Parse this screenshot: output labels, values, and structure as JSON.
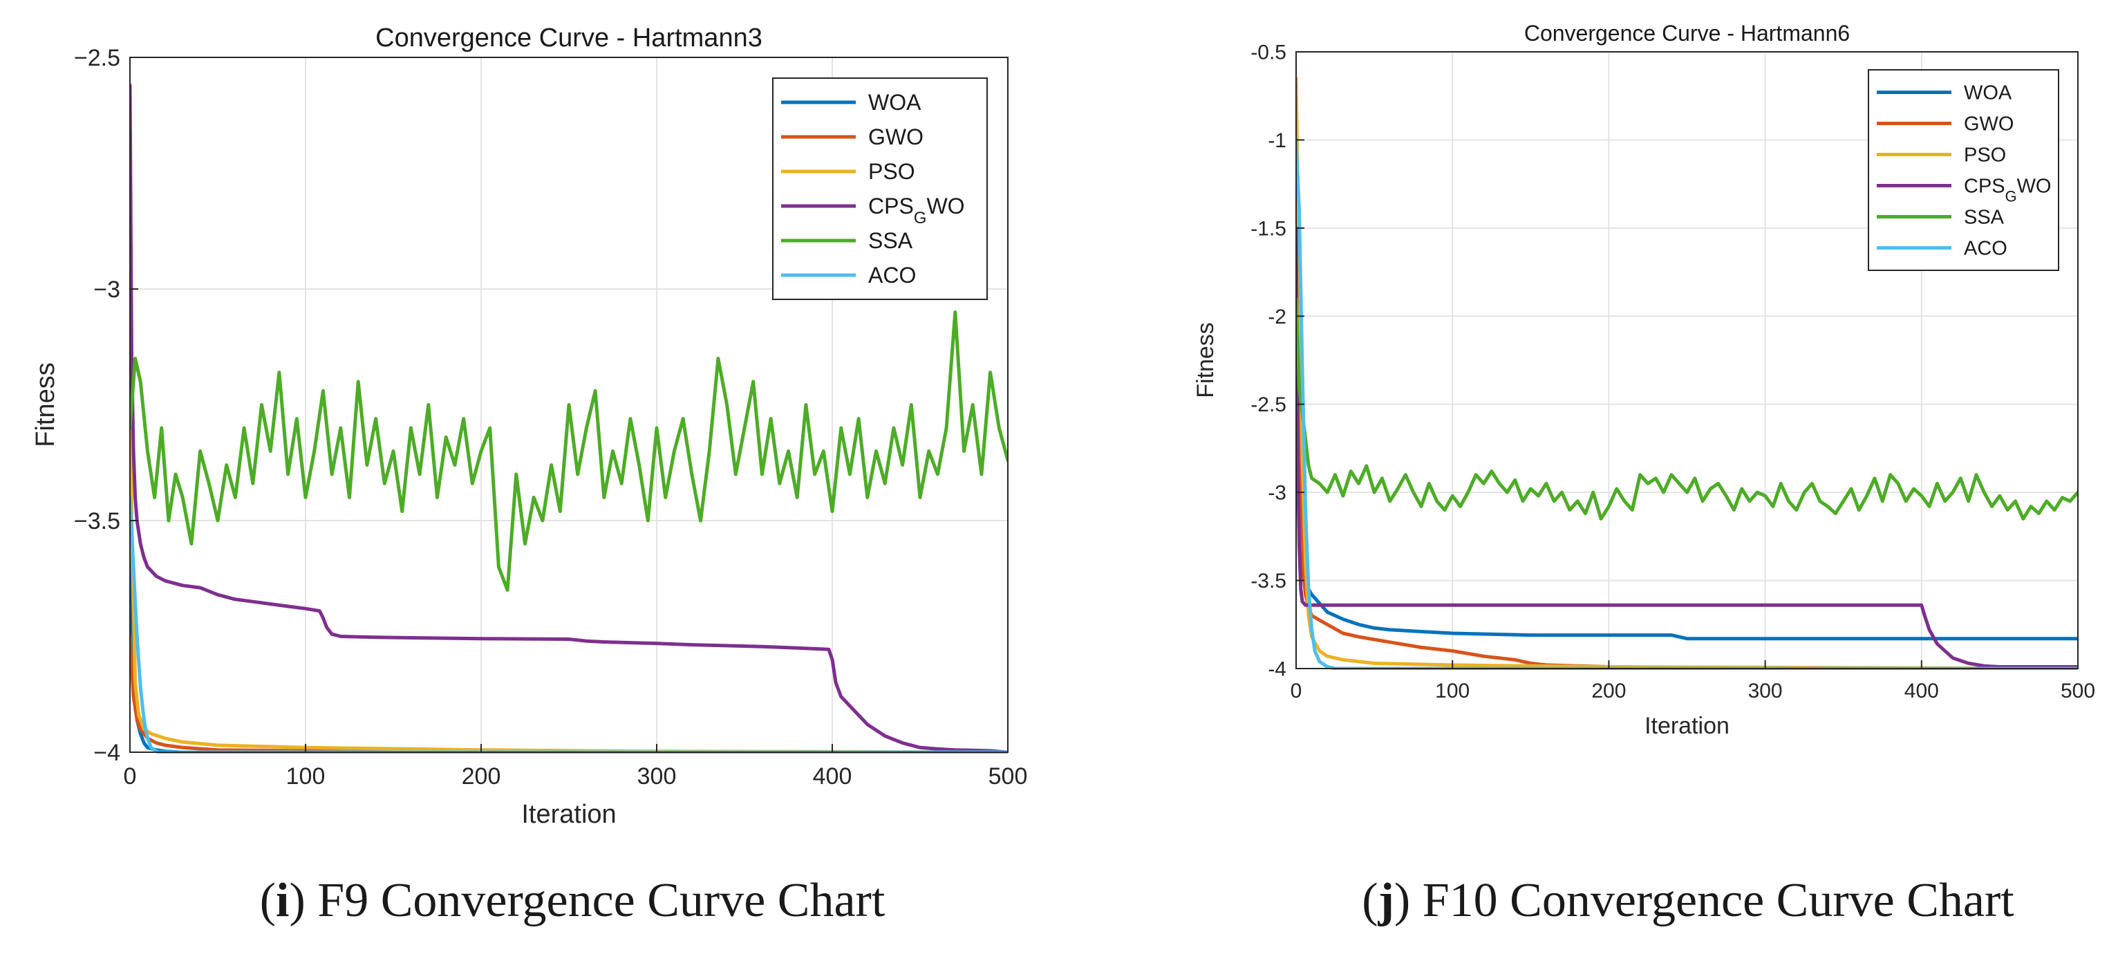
{
  "figure": {
    "captions": [
      {
        "label": "i",
        "text": " F9 Convergence Curve Chart"
      },
      {
        "label": "j",
        "text": " F10 Convergence Curve Chart"
      }
    ]
  },
  "chart_data": [
    {
      "type": "line",
      "title": "Convergence Curve - Hartmann3",
      "xlabel": "Iteration",
      "ylabel": "Fitness",
      "xlim": [
        0,
        500
      ],
      "ylim": [
        -4,
        -2.5
      ],
      "xticks": [
        0,
        100,
        200,
        300,
        400,
        500
      ],
      "xtick_labels": [
        "0",
        "100",
        "200",
        "300",
        "400",
        "500"
      ],
      "yticks": [
        -4,
        -3.5,
        -3,
        -2.5
      ],
      "ytick_labels": [
        "−4",
        "−3.5",
        "−3",
        "−2.5"
      ],
      "grid": true,
      "legend_position": "top-right",
      "series": [
        {
          "name": "WOA",
          "color": "#0072BD",
          "x": [
            0,
            2,
            4,
            6,
            8,
            10,
            15,
            20,
            30,
            50,
            100,
            500
          ],
          "y": [
            -3.5,
            -3.85,
            -3.93,
            -3.96,
            -3.98,
            -3.99,
            -3.995,
            -3.998,
            -4.0,
            -4.0,
            -4.0,
            -4.0
          ]
        },
        {
          "name": "GWO",
          "color": "#D95319",
          "x": [
            0,
            2,
            4,
            6,
            8,
            10,
            15,
            20,
            30,
            50,
            100,
            200,
            500
          ],
          "y": [
            -3.75,
            -3.88,
            -3.93,
            -3.95,
            -3.96,
            -3.97,
            -3.98,
            -3.985,
            -3.99,
            -3.995,
            -3.997,
            -3.999,
            -4.0
          ]
        },
        {
          "name": "PSO",
          "color": "#EDB120",
          "x": [
            0,
            1,
            3,
            5,
            8,
            12,
            20,
            30,
            50,
            100,
            200,
            300,
            400,
            500
          ],
          "y": [
            -2.9,
            -3.5,
            -3.85,
            -3.92,
            -3.95,
            -3.96,
            -3.97,
            -3.978,
            -3.985,
            -3.99,
            -3.995,
            -3.998,
            -3.999,
            -4.0
          ]
        },
        {
          "name": "CPSGWO",
          "color": "#7E2F8E",
          "x": [
            0,
            1,
            2,
            3,
            4,
            6,
            8,
            10,
            15,
            20,
            30,
            40,
            50,
            60,
            70,
            80,
            90,
            100,
            108,
            110,
            112,
            115,
            120,
            140,
            160,
            200,
            250,
            260,
            270,
            280,
            300,
            320,
            340,
            360,
            380,
            398,
            400,
            402,
            405,
            410,
            415,
            420,
            430,
            440,
            450,
            460,
            470,
            480,
            490,
            500
          ],
          "y": [
            -2.56,
            -3.15,
            -3.35,
            -3.45,
            -3.5,
            -3.55,
            -3.58,
            -3.6,
            -3.62,
            -3.63,
            -3.64,
            -3.645,
            -3.66,
            -3.67,
            -3.675,
            -3.68,
            -3.685,
            -3.69,
            -3.695,
            -3.71,
            -3.73,
            -3.745,
            -3.75,
            -3.752,
            -3.753,
            -3.755,
            -3.756,
            -3.76,
            -3.762,
            -3.763,
            -3.765,
            -3.768,
            -3.77,
            -3.772,
            -3.775,
            -3.778,
            -3.8,
            -3.85,
            -3.88,
            -3.9,
            -3.92,
            -3.94,
            -3.965,
            -3.98,
            -3.99,
            -3.993,
            -3.995,
            -3.996,
            -3.997,
            -4.0
          ]
        },
        {
          "name": "SSA",
          "color": "#4DAC26",
          "x": [
            0,
            3,
            6,
            10,
            14,
            18,
            22,
            26,
            30,
            35,
            40,
            45,
            50,
            55,
            60,
            65,
            70,
            75,
            80,
            85,
            90,
            95,
            100,
            105,
            110,
            115,
            120,
            125,
            130,
            135,
            140,
            145,
            150,
            155,
            160,
            165,
            170,
            175,
            180,
            185,
            190,
            195,
            200,
            205,
            210,
            215,
            220,
            225,
            230,
            235,
            240,
            245,
            250,
            255,
            260,
            265,
            270,
            275,
            280,
            285,
            290,
            295,
            300,
            305,
            310,
            315,
            320,
            325,
            330,
            335,
            340,
            345,
            350,
            355,
            360,
            365,
            370,
            375,
            380,
            385,
            390,
            395,
            400,
            405,
            410,
            415,
            420,
            425,
            430,
            435,
            440,
            445,
            450,
            455,
            460,
            465,
            470,
            475,
            480,
            485,
            490,
            495,
            500
          ],
          "y": [
            -3.3,
            -3.15,
            -3.2,
            -3.35,
            -3.45,
            -3.3,
            -3.5,
            -3.4,
            -3.45,
            -3.55,
            -3.35,
            -3.42,
            -3.5,
            -3.38,
            -3.45,
            -3.3,
            -3.42,
            -3.25,
            -3.35,
            -3.18,
            -3.4,
            -3.28,
            -3.45,
            -3.35,
            -3.22,
            -3.4,
            -3.3,
            -3.45,
            -3.2,
            -3.38,
            -3.28,
            -3.42,
            -3.35,
            -3.48,
            -3.3,
            -3.4,
            -3.25,
            -3.45,
            -3.32,
            -3.38,
            -3.28,
            -3.42,
            -3.35,
            -3.3,
            -3.6,
            -3.65,
            -3.4,
            -3.55,
            -3.45,
            -3.5,
            -3.38,
            -3.48,
            -3.25,
            -3.4,
            -3.3,
            -3.22,
            -3.45,
            -3.35,
            -3.42,
            -3.28,
            -3.38,
            -3.5,
            -3.3,
            -3.45,
            -3.35,
            -3.28,
            -3.4,
            -3.5,
            -3.35,
            -3.15,
            -3.25,
            -3.4,
            -3.3,
            -3.2,
            -3.4,
            -3.28,
            -3.42,
            -3.35,
            -3.45,
            -3.25,
            -3.4,
            -3.35,
            -3.48,
            -3.3,
            -3.4,
            -3.28,
            -3.45,
            -3.35,
            -3.42,
            -3.3,
            -3.38,
            -3.25,
            -3.45,
            -3.35,
            -3.4,
            -3.3,
            -3.05,
            -3.35,
            -3.25,
            -3.4,
            -3.18,
            -3.3,
            -3.37
          ]
        },
        {
          "name": "ACO",
          "color": "#4DBEEE",
          "x": [
            0,
            2,
            4,
            6,
            8,
            10,
            12,
            14,
            16,
            20,
            500
          ],
          "y": [
            -3.45,
            -3.6,
            -3.75,
            -3.86,
            -3.93,
            -3.97,
            -3.99,
            -3.995,
            -4.0,
            -4.0,
            -4.0
          ]
        }
      ]
    },
    {
      "type": "line",
      "title": "Convergence Curve - Hartmann6",
      "xlabel": "Iteration",
      "ylabel": "Fitness",
      "xlim": [
        0,
        500
      ],
      "ylim": [
        -4,
        -0.5
      ],
      "xticks": [
        0,
        100,
        200,
        300,
        400,
        500
      ],
      "xtick_labels": [
        "0",
        "100",
        "200",
        "300",
        "400",
        "500"
      ],
      "yticks": [
        -4,
        -3.5,
        -3,
        -2.5,
        -2,
        -1.5,
        -1,
        -0.5
      ],
      "ytick_labels": [
        "-4",
        "-3.5",
        "-3",
        "-2.5",
        "-2",
        "-1.5",
        "-1",
        "-0.5"
      ],
      "grid": true,
      "legend_position": "top-right",
      "series": [
        {
          "name": "WOA",
          "color": "#0072BD",
          "x": [
            0,
            2,
            4,
            6,
            8,
            10,
            15,
            20,
            30,
            40,
            50,
            60,
            80,
            100,
            150,
            200,
            240,
            250,
            300,
            400,
            500
          ],
          "y": [
            -1.3,
            -2.6,
            -3.2,
            -3.45,
            -3.55,
            -3.58,
            -3.63,
            -3.68,
            -3.72,
            -3.75,
            -3.77,
            -3.78,
            -3.79,
            -3.8,
            -3.81,
            -3.81,
            -3.81,
            -3.83,
            -3.83,
            -3.83,
            -3.83
          ]
        },
        {
          "name": "GWO",
          "color": "#D95319",
          "x": [
            0,
            2,
            4,
            6,
            8,
            10,
            20,
            30,
            40,
            60,
            80,
            100,
            120,
            140,
            150,
            160,
            200,
            300,
            400,
            500
          ],
          "y": [
            -1.4,
            -2.9,
            -3.4,
            -3.58,
            -3.65,
            -3.7,
            -3.75,
            -3.8,
            -3.82,
            -3.85,
            -3.88,
            -3.9,
            -3.93,
            -3.95,
            -3.97,
            -3.98,
            -3.99,
            -4.0,
            -4.0,
            -4.0
          ]
        },
        {
          "name": "PSO",
          "color": "#EDB120",
          "x": [
            0,
            2,
            4,
            6,
            8,
            10,
            15,
            20,
            30,
            50,
            100,
            200,
            500
          ],
          "y": [
            -0.65,
            -1.8,
            -2.8,
            -3.4,
            -3.7,
            -3.82,
            -3.9,
            -3.93,
            -3.95,
            -3.97,
            -3.98,
            -3.99,
            -4.0
          ]
        },
        {
          "name": "CPSGWO",
          "color": "#7E2F8E",
          "x": [
            0,
            1,
            2,
            3,
            4,
            6,
            10,
            50,
            100,
            200,
            300,
            400,
            402,
            405,
            410,
            420,
            430,
            440,
            450,
            500
          ],
          "y": [
            -1.5,
            -2.8,
            -3.3,
            -3.55,
            -3.62,
            -3.64,
            -3.64,
            -3.64,
            -3.64,
            -3.64,
            -3.64,
            -3.64,
            -3.7,
            -3.78,
            -3.86,
            -3.94,
            -3.97,
            -3.985,
            -3.99,
            -3.99
          ]
        },
        {
          "name": "SSA",
          "color": "#4DAC26",
          "x": [
            0,
            2,
            4,
            6,
            8,
            10,
            15,
            20,
            25,
            30,
            35,
            40,
            45,
            50,
            55,
            60,
            65,
            70,
            75,
            80,
            85,
            90,
            95,
            100,
            105,
            110,
            115,
            120,
            125,
            130,
            135,
            140,
            145,
            150,
            155,
            160,
            165,
            170,
            175,
            180,
            185,
            190,
            195,
            200,
            205,
            210,
            215,
            220,
            225,
            230,
            235,
            240,
            245,
            250,
            255,
            260,
            265,
            270,
            275,
            280,
            285,
            290,
            295,
            300,
            305,
            310,
            315,
            320,
            325,
            330,
            335,
            340,
            345,
            350,
            355,
            360,
            365,
            370,
            375,
            380,
            385,
            390,
            395,
            400,
            405,
            410,
            415,
            420,
            425,
            430,
            435,
            440,
            445,
            450,
            455,
            460,
            465,
            470,
            475,
            480,
            485,
            490,
            495,
            500
          ],
          "y": [
            -1.9,
            -2.4,
            -2.55,
            -2.7,
            -2.85,
            -2.92,
            -2.95,
            -3.0,
            -2.9,
            -3.02,
            -2.88,
            -2.95,
            -2.85,
            -3.0,
            -2.92,
            -3.05,
            -2.98,
            -2.9,
            -3.0,
            -3.08,
            -2.95,
            -3.05,
            -3.1,
            -3.02,
            -3.08,
            -3.0,
            -2.9,
            -2.95,
            -2.88,
            -2.95,
            -3.0,
            -2.93,
            -3.05,
            -2.98,
            -3.02,
            -2.95,
            -3.05,
            -3.0,
            -3.1,
            -3.05,
            -3.12,
            -3.0,
            -3.15,
            -3.08,
            -2.98,
            -3.05,
            -3.1,
            -2.9,
            -2.95,
            -2.92,
            -3.0,
            -2.9,
            -2.95,
            -3.0,
            -2.92,
            -3.05,
            -2.98,
            -2.95,
            -3.02,
            -3.1,
            -2.98,
            -3.05,
            -3.0,
            -3.02,
            -3.08,
            -2.95,
            -3.05,
            -3.1,
            -3.0,
            -2.95,
            -3.05,
            -3.08,
            -3.12,
            -3.05,
            -2.98,
            -3.1,
            -3.02,
            -2.92,
            -3.05,
            -2.9,
            -2.95,
            -3.05,
            -2.98,
            -3.02,
            -3.08,
            -2.95,
            -3.05,
            -3.0,
            -2.92,
            -3.05,
            -2.9,
            -3.0,
            -3.08,
            -3.02,
            -3.1,
            -3.05,
            -3.15,
            -3.08,
            -3.12,
            -3.05,
            -3.1,
            -3.03,
            -3.05,
            -3.0
          ]
        },
        {
          "name": "ACO",
          "color": "#4DBEEE",
          "x": [
            0,
            2,
            4,
            6,
            8,
            10,
            12,
            15,
            20,
            25,
            30,
            500
          ],
          "y": [
            -1.0,
            -1.4,
            -2.3,
            -3.1,
            -3.55,
            -3.78,
            -3.9,
            -3.96,
            -3.99,
            -4.0,
            -4.0,
            -4.0
          ]
        }
      ]
    }
  ]
}
